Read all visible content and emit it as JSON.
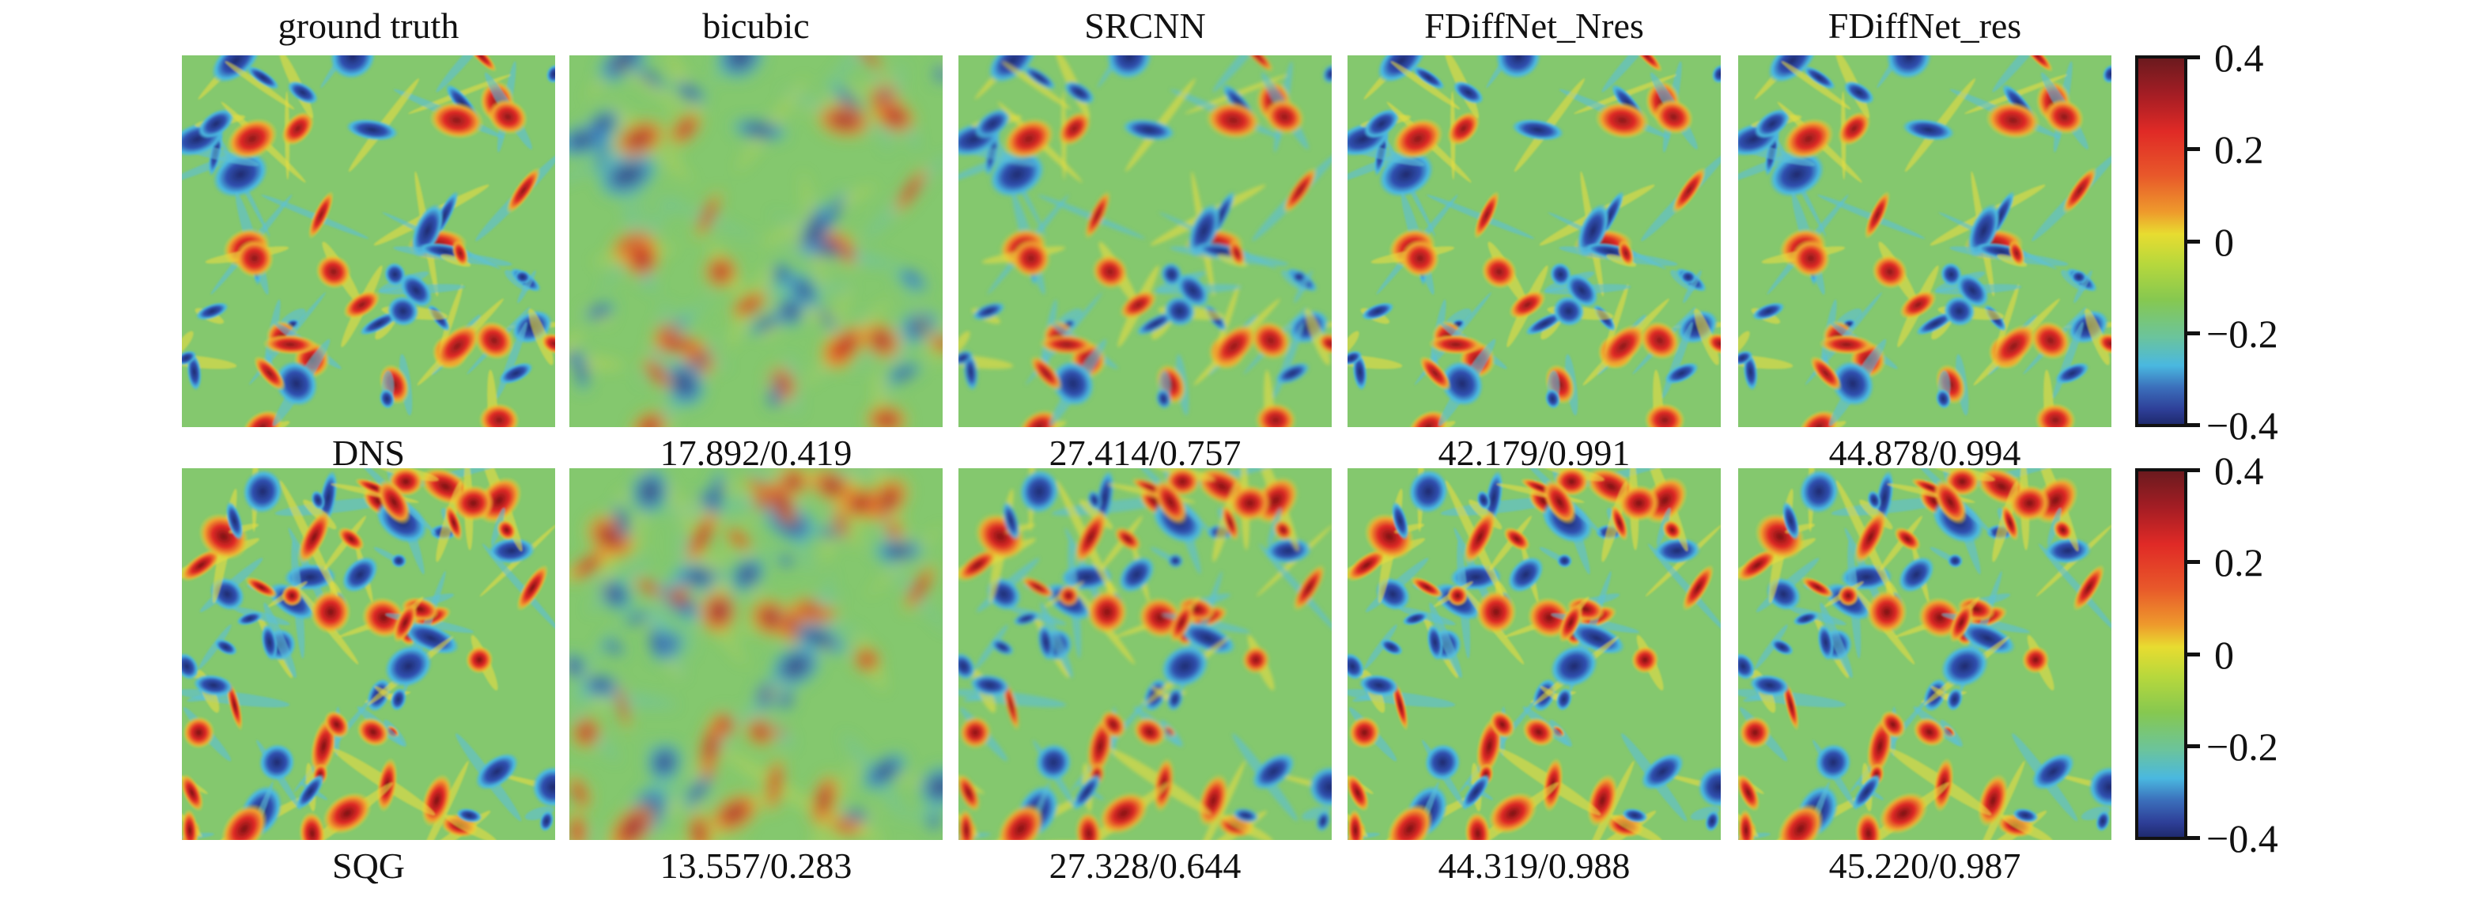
{
  "columns": [
    "ground truth",
    "bicubic",
    "SRCNN",
    "FDiffNet_Nres",
    "FDiffNet_res"
  ],
  "rows": [
    {
      "name": "DNS",
      "labels": [
        "DNS",
        "17.892/0.419",
        "27.414/0.757",
        "42.179/0.991",
        "44.878/0.994"
      ]
    },
    {
      "name": "SQG",
      "labels": [
        "SQG",
        "13.557/0.283",
        "27.328/0.644",
        "44.319/0.988",
        "45.220/0.987"
      ]
    }
  ],
  "colorbar": {
    "colormap": "jet",
    "ticks": [
      "0.4",
      "0.2",
      "0",
      "−0.2",
      "−0.4"
    ],
    "range": [
      -0.4,
      0.4
    ]
  }
}
